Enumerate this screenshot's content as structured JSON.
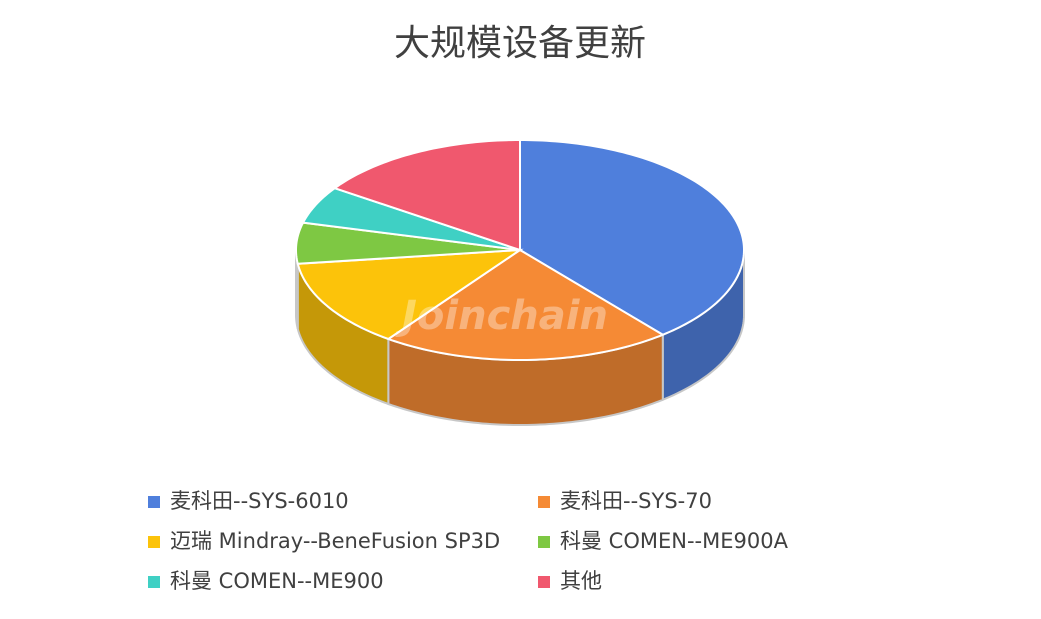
{
  "chart_data": {
    "type": "pie3d",
    "title": "大规模设备更新",
    "watermark": "Joinchain",
    "categories": [
      "麦科田--SYS-6010",
      "麦科田--SYS-70",
      "迈瑞 Mindray--BeneFusion SP3D",
      "科曼 COMEN--ME900A",
      "科曼 COMEN--ME900",
      "其他"
    ],
    "values": [
      39,
      21,
      13,
      6,
      5.5,
      15.5
    ],
    "colors": [
      "#4f7fdc",
      "#f58a35",
      "#fcc30a",
      "#7ec843",
      "#3fd0c4",
      "#f0586e"
    ]
  }
}
